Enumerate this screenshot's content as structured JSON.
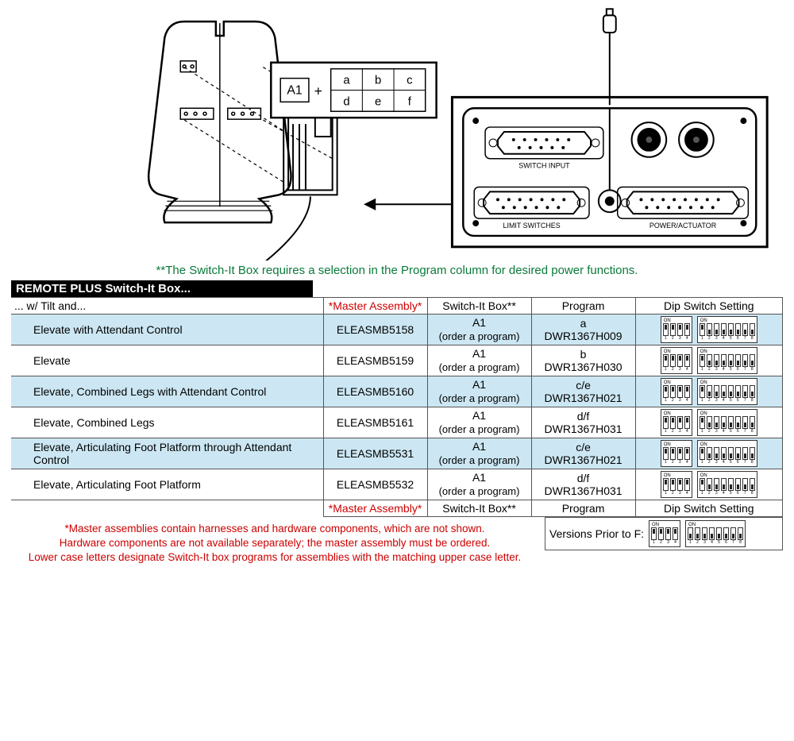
{
  "green_note": "**The Switch-It Box requires a selection in the Program column for desired power functions.",
  "black_bar": "REMOTE PLUS Switch-It Box...",
  "subtitle": "... w/ Tilt and...",
  "headers": {
    "master": "*Master Assembly*",
    "switch": "Switch-It Box**",
    "program": "Program",
    "dip": "Dip Switch Setting"
  },
  "switch_sub": "(order a program)",
  "switch_box_code": "A1",
  "rows": [
    {
      "shade": true,
      "desc": "Elevate with Attendant Control",
      "master": "ELEASMB5158",
      "prog_letter": "a",
      "prog_code": "DWR1367H009",
      "dipA": [
        "u",
        "u",
        "u",
        "u"
      ],
      "dipB": [
        "u",
        "d",
        "d",
        "d",
        "d",
        "d",
        "d",
        "d"
      ]
    },
    {
      "shade": false,
      "desc": "Elevate",
      "master": "ELEASMB5159",
      "prog_letter": "b",
      "prog_code": "DWR1367H030",
      "dipA": [
        "u",
        "u",
        "u",
        "u"
      ],
      "dipB": [
        "u",
        "d",
        "d",
        "d",
        "d",
        "d",
        "d",
        "d"
      ]
    },
    {
      "shade": true,
      "desc": "Elevate, Combined Legs with Attendant Control",
      "master": "ELEASMB5160",
      "prog_letter": "c/e",
      "prog_code": "DWR1367H021",
      "dipA": [
        "u",
        "u",
        "u",
        "u"
      ],
      "dipB": [
        "u",
        "d",
        "d",
        "d",
        "d",
        "d",
        "d",
        "d"
      ]
    },
    {
      "shade": false,
      "desc": "Elevate, Combined Legs",
      "master": "ELEASMB5161",
      "prog_letter": "d/f",
      "prog_code": "DWR1367H031",
      "dipA": [
        "u",
        "u",
        "u",
        "u"
      ],
      "dipB": [
        "u",
        "d",
        "d",
        "d",
        "d",
        "d",
        "d",
        "d"
      ]
    },
    {
      "shade": true,
      "desc": "Elevate, Articulating Foot Platform through Attendant Control",
      "master": "ELEASMB5531",
      "prog_letter": "c/e",
      "prog_code": "DWR1367H021",
      "dipA": [
        "u",
        "u",
        "u",
        "u"
      ],
      "dipB": [
        "u",
        "d",
        "d",
        "d",
        "d",
        "d",
        "d",
        "d"
      ]
    },
    {
      "shade": false,
      "desc": "Elevate, Articulating Foot Platform",
      "master": "ELEASMB5532",
      "prog_letter": "d/f",
      "prog_code": "DWR1367H031",
      "dipA": [
        "u",
        "u",
        "u",
        "u"
      ],
      "dipB": [
        "u",
        "d",
        "d",
        "d",
        "d",
        "d",
        "d",
        "d"
      ]
    }
  ],
  "red_footer": [
    "*Master assemblies contain harnesses and hardware components, which are not shown.",
    "Hardware components are not available separately; the master assembly must be ordered.",
    "Lower case letters designate Switch-It box programs for assemblies with the matching upper case letter."
  ],
  "versions_label": "Versions Prior to F:",
  "versions_dipA": [
    "u",
    "u",
    "u",
    "u"
  ],
  "versions_dipB": [
    "d",
    "d",
    "d",
    "d",
    "d",
    "d",
    "d",
    "d"
  ],
  "diagram": {
    "key_grid_label": "A1",
    "key_letters": [
      "a",
      "b",
      "c",
      "d",
      "e",
      "f"
    ],
    "panel_labels": {
      "switch_input": "SWITCH INPUT",
      "limit": "LIMIT SWITCHES",
      "power": "POWER/ACTUATOR"
    }
  }
}
